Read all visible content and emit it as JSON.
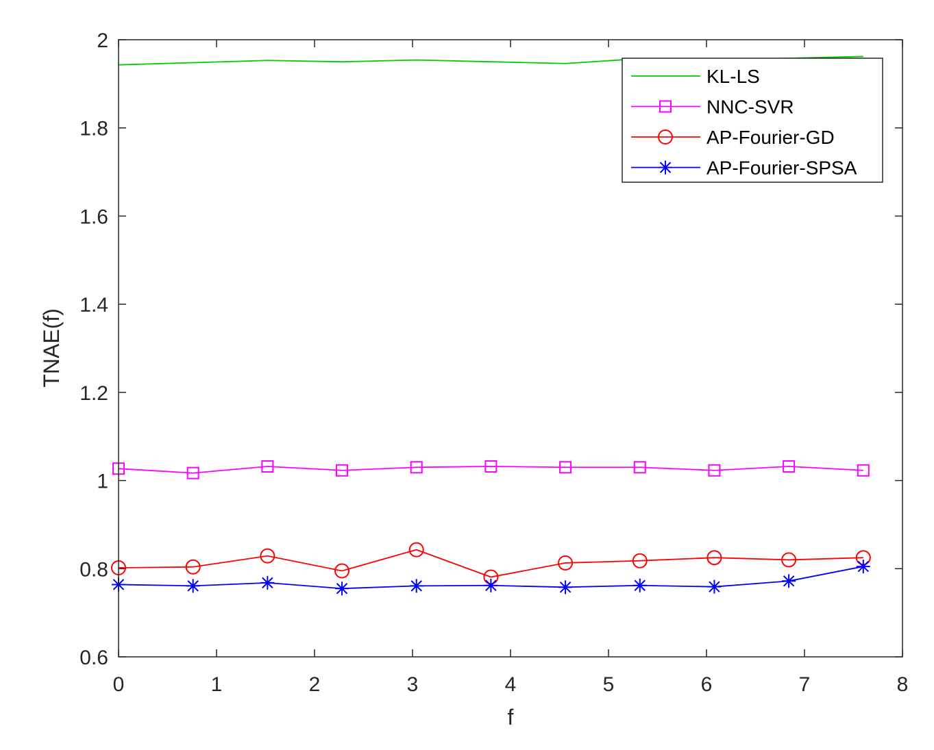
{
  "chart_data": {
    "type": "line",
    "title": "",
    "xlabel": "f",
    "ylabel": "TNAE(f)",
    "xlim": [
      0,
      8
    ],
    "ylim": [
      0.6,
      2
    ],
    "xticks": [
      0,
      1,
      2,
      3,
      4,
      5,
      6,
      7,
      8
    ],
    "yticks": [
      0.6,
      0.8,
      1,
      1.2,
      1.4,
      1.6,
      1.8,
      2
    ],
    "ytick_labels": [
      "0.6",
      "0.8",
      "1",
      "1.2",
      "1.4",
      "1.6",
      "1.8",
      "2"
    ],
    "grid": false,
    "legend_position": "top-right",
    "x": [
      0,
      0.76,
      1.52,
      2.28,
      3.04,
      3.8,
      4.56,
      5.32,
      6.08,
      6.84,
      7.6
    ],
    "series": [
      {
        "name": "KL-LS",
        "color": "#00cc00",
        "marker": "none",
        "values": [
          1.943,
          1.948,
          1.953,
          1.95,
          1.954,
          1.95,
          1.946,
          1.957,
          1.955,
          1.958,
          1.962
        ]
      },
      {
        "name": "NNC-SVR",
        "color": "#ff00ff",
        "marker": "square",
        "values": [
          1.027,
          1.017,
          1.032,
          1.023,
          1.03,
          1.032,
          1.03,
          1.03,
          1.023,
          1.032,
          1.023
        ]
      },
      {
        "name": "AP-Fourier-GD",
        "color": "#ff0000",
        "marker": "circle",
        "values": [
          0.802,
          0.804,
          0.829,
          0.795,
          0.843,
          0.781,
          0.813,
          0.818,
          0.825,
          0.82,
          0.825
        ]
      },
      {
        "name": "AP-Fourier-SPSA",
        "color": "#0000ff",
        "marker": "asterisk",
        "values": [
          0.764,
          0.761,
          0.768,
          0.755,
          0.761,
          0.762,
          0.758,
          0.762,
          0.759,
          0.772,
          0.805
        ]
      }
    ]
  }
}
